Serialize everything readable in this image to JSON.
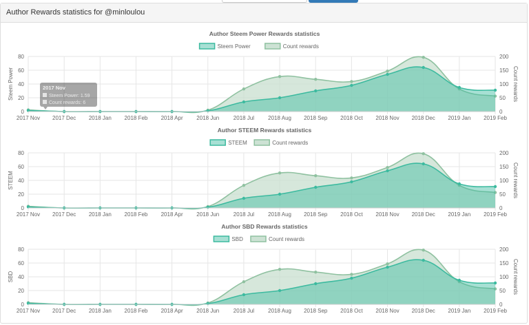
{
  "panel": {
    "title": "Author Rewards statistics for @minloulou"
  },
  "tooltip": {
    "title": "2017 Nov",
    "line1": "Steem Power: 1.59",
    "line2": "Count rewards: 6"
  },
  "colors": {
    "primary_line": "#3cba9f",
    "primary_fill": "#3cba9f",
    "count_line": "#8fc1a0",
    "count_fill": "#c8dfcf",
    "grid": "#e6e6e6",
    "text": "#666666"
  },
  "chart_data": [
    {
      "type": "area",
      "title": "Author Steem Power Rewards statistics",
      "categories": [
        "2017 Nov",
        "2017 Dec",
        "2018 Jan",
        "2018 Feb",
        "2018 Apr",
        "2018 Jun",
        "2018 Jul",
        "2018 Aug",
        "2018 Sep",
        "2018 Oct",
        "2018 Nov",
        "2018 Dec",
        "2019 Jan",
        "2019 Feb"
      ],
      "ylabel": "Steem Power",
      "y2label": "Count rewards",
      "ylim": [
        0,
        80
      ],
      "y2lim": [
        0,
        200
      ],
      "yticks": [
        0,
        20,
        40,
        60,
        80
      ],
      "y2ticks": [
        0,
        50,
        100,
        150,
        200
      ],
      "legend_placement": "top-center",
      "grid": true,
      "series": [
        {
          "name": "Steem Power",
          "axis": "left",
          "values": [
            1.59,
            0,
            0,
            0,
            0,
            1,
            14,
            20,
            30,
            38,
            54,
            64,
            35,
            31
          ]
        },
        {
          "name": "Count rewards",
          "axis": "right",
          "values": [
            6,
            0,
            0,
            0,
            0,
            5,
            82,
            127,
            117,
            109,
            147,
            197,
            82,
            56
          ]
        }
      ]
    },
    {
      "type": "area",
      "title": "Author STEEM Rewards statistics",
      "categories": [
        "2017 Nov",
        "2017 Dec",
        "2018 Jan",
        "2018 Feb",
        "2018 Apr",
        "2018 Jun",
        "2018 Jul",
        "2018 Aug",
        "2018 Sep",
        "2018 Oct",
        "2018 Nov",
        "2018 Dec",
        "2019 Jan",
        "2019 Feb"
      ],
      "ylabel": "STEEM",
      "y2label": "Count rewards",
      "ylim": [
        0,
        80
      ],
      "y2lim": [
        0,
        200
      ],
      "yticks": [
        0,
        20,
        40,
        60,
        80
      ],
      "y2ticks": [
        0,
        50,
        100,
        150,
        200
      ],
      "legend_placement": "top-center",
      "grid": true,
      "series": [
        {
          "name": "STEEM",
          "axis": "left",
          "values": [
            1.5,
            0,
            0,
            0,
            0,
            1,
            14,
            20,
            30,
            38,
            54,
            64,
            35,
            31
          ]
        },
        {
          "name": "Count rewards",
          "axis": "right",
          "values": [
            6,
            0,
            0,
            0,
            0,
            5,
            82,
            127,
            117,
            109,
            147,
            197,
            82,
            56
          ]
        }
      ]
    },
    {
      "type": "area",
      "title": "Author SBD Rewards statistics",
      "categories": [
        "2017 Nov",
        "2017 Dec",
        "2018 Jan",
        "2018 Feb",
        "2018 Apr",
        "2018 Jun",
        "2018 Jul",
        "2018 Aug",
        "2018 Sep",
        "2018 Oct",
        "2018 Nov",
        "2018 Dec",
        "2019 Jan",
        "2019 Feb"
      ],
      "ylabel": "SBD",
      "y2label": "Count rewards",
      "ylim": [
        0,
        80
      ],
      "y2lim": [
        0,
        200
      ],
      "yticks": [
        0,
        20,
        40,
        60,
        80
      ],
      "y2ticks": [
        0,
        50,
        100,
        150,
        200
      ],
      "legend_placement": "top-center",
      "grid": true,
      "series": [
        {
          "name": "SBD",
          "axis": "left",
          "values": [
            1.5,
            0,
            0,
            0,
            0,
            1,
            14,
            20,
            30,
            38,
            54,
            64,
            35,
            31
          ]
        },
        {
          "name": "Count rewards",
          "axis": "right",
          "values": [
            6,
            0,
            0,
            0,
            0,
            5,
            82,
            127,
            117,
            109,
            147,
            197,
            82,
            56
          ]
        }
      ]
    }
  ]
}
